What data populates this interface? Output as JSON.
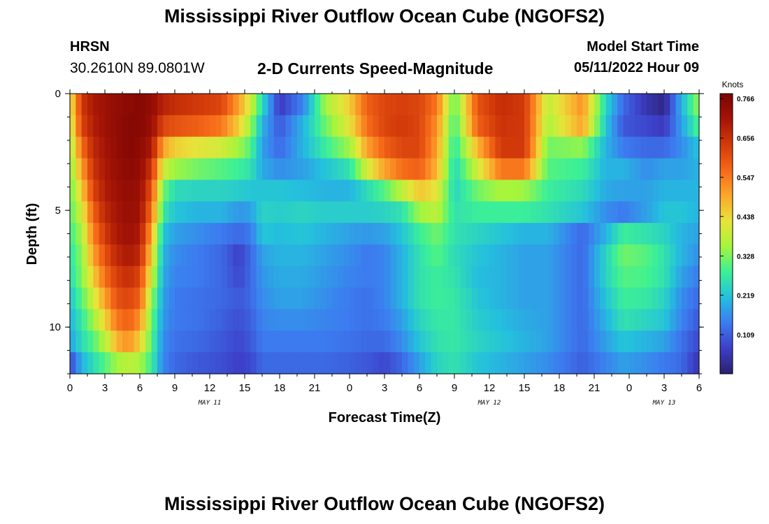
{
  "page": {
    "title": "Mississippi River Outflow Ocean Cube (NGOFS2)",
    "title_repeat": "Mississippi River Outflow Ocean Cube (NGOFS2)"
  },
  "header": {
    "station": "HRSN",
    "coords": "30.2610N  89.0801W",
    "subtitle": "2-D Currents Speed-Magnitude",
    "model_label": "Model Start Time",
    "model_time": "05/11/2022 Hour 09"
  },
  "chart_data": {
    "type": "heatmap",
    "xlabel": "Forecast Time(Z)",
    "ylabel": "Depth (ft)",
    "x_ticks": [
      "0",
      "3",
      "6",
      "9",
      "12",
      "15",
      "18",
      "21",
      "0",
      "3",
      "6",
      "9",
      "12",
      "15",
      "18",
      "21",
      "0",
      "3",
      "6"
    ],
    "x_range_hours": [
      0,
      54
    ],
    "y_ticks": [
      "0",
      "5",
      "10"
    ],
    "y_range": [
      0,
      12
    ],
    "date_labels": [
      {
        "text": "MAY 11",
        "hour": 12
      },
      {
        "text": "MAY 12",
        "hour": 36
      },
      {
        "text": "MAY 13",
        "hour": 51
      }
    ],
    "colorbar": {
      "unit": "Knots",
      "ticks": [
        "0.766",
        "0.656",
        "0.547",
        "0.438",
        "0.328",
        "0.219",
        "0.109"
      ],
      "tick_values": [
        0.766,
        0.656,
        0.547,
        0.438,
        0.328,
        0.219,
        0.109
      ],
      "min": 0.0,
      "max": 0.78,
      "colors": [
        "#2b1f6b",
        "#3d3fc9",
        "#3c7cf0",
        "#24c0dd",
        "#3cf096",
        "#a6f53c",
        "#e8e33a",
        "#fca62c",
        "#f56818",
        "#d23a0a",
        "#a51406",
        "#7a0403"
      ]
    },
    "depth_levels": [
      0,
      1,
      2,
      3,
      4,
      5,
      6,
      7,
      8,
      9,
      10,
      11,
      12
    ],
    "speed_profiles": [
      {
        "hour": 0,
        "values": [
          0.4,
          0.38,
          0.35,
          0.33,
          0.31,
          0.3,
          0.28,
          0.26,
          0.25,
          0.22,
          0.2,
          0.18,
          0.08
        ]
      },
      {
        "hour": 1,
        "values": [
          0.64,
          0.62,
          0.56,
          0.5,
          0.45,
          0.4,
          0.36,
          0.34,
          0.33,
          0.3,
          0.27,
          0.25,
          0.2
        ]
      },
      {
        "hour": 2,
        "values": [
          0.7,
          0.69,
          0.67,
          0.65,
          0.62,
          0.58,
          0.54,
          0.5,
          0.45,
          0.4,
          0.35,
          0.3,
          0.25
        ]
      },
      {
        "hour": 3,
        "values": [
          0.72,
          0.72,
          0.71,
          0.7,
          0.69,
          0.67,
          0.64,
          0.6,
          0.56,
          0.5,
          0.44,
          0.37,
          0.3
        ]
      },
      {
        "hour": 4,
        "values": [
          0.74,
          0.74,
          0.74,
          0.73,
          0.72,
          0.71,
          0.7,
          0.67,
          0.63,
          0.6,
          0.55,
          0.48,
          0.35
        ]
      },
      {
        "hour": 5,
        "values": [
          0.75,
          0.76,
          0.76,
          0.75,
          0.74,
          0.73,
          0.72,
          0.7,
          0.66,
          0.62,
          0.58,
          0.52,
          0.38
        ]
      },
      {
        "hour": 6,
        "values": [
          0.76,
          0.76,
          0.75,
          0.74,
          0.73,
          0.72,
          0.7,
          0.67,
          0.62,
          0.58,
          0.52,
          0.45,
          0.36
        ]
      },
      {
        "hour": 7,
        "values": [
          0.74,
          0.73,
          0.7,
          0.65,
          0.6,
          0.56,
          0.5,
          0.45,
          0.4,
          0.35,
          0.32,
          0.3,
          0.28
        ]
      },
      {
        "hour": 8,
        "values": [
          0.68,
          0.62,
          0.5,
          0.4,
          0.32,
          0.27,
          0.22,
          0.2,
          0.19,
          0.18,
          0.17,
          0.16,
          0.15
        ]
      },
      {
        "hour": 9,
        "values": [
          0.66,
          0.6,
          0.45,
          0.35,
          0.25,
          0.22,
          0.18,
          0.16,
          0.15,
          0.14,
          0.14,
          0.13,
          0.12
        ]
      },
      {
        "hour": 11,
        "values": [
          0.64,
          0.58,
          0.42,
          0.32,
          0.24,
          0.2,
          0.16,
          0.14,
          0.14,
          0.13,
          0.13,
          0.12,
          0.1
        ]
      },
      {
        "hour": 13,
        "values": [
          0.62,
          0.55,
          0.4,
          0.3,
          0.24,
          0.2,
          0.14,
          0.12,
          0.12,
          0.12,
          0.11,
          0.1,
          0.09
        ]
      },
      {
        "hour": 14.5,
        "values": [
          0.5,
          0.45,
          0.35,
          0.28,
          0.23,
          0.17,
          0.12,
          0.07,
          0.08,
          0.1,
          0.09,
          0.08,
          0.07
        ]
      },
      {
        "hour": 15.5,
        "values": [
          0.4,
          0.35,
          0.3,
          0.26,
          0.22,
          0.18,
          0.14,
          0.12,
          0.12,
          0.12,
          0.11,
          0.1,
          0.08
        ]
      },
      {
        "hour": 16.5,
        "values": [
          0.25,
          0.2,
          0.18,
          0.19,
          0.22,
          0.24,
          0.22,
          0.18,
          0.17,
          0.16,
          0.15,
          0.14,
          0.12
        ]
      },
      {
        "hour": 18,
        "values": [
          0.06,
          0.1,
          0.12,
          0.16,
          0.22,
          0.23,
          0.21,
          0.2,
          0.19,
          0.18,
          0.16,
          0.14,
          0.12
        ]
      },
      {
        "hour": 20,
        "values": [
          0.15,
          0.2,
          0.2,
          0.18,
          0.21,
          0.24,
          0.22,
          0.2,
          0.19,
          0.18,
          0.16,
          0.14,
          0.12
        ]
      },
      {
        "hour": 22,
        "values": [
          0.36,
          0.32,
          0.28,
          0.22,
          0.2,
          0.23,
          0.2,
          0.18,
          0.17,
          0.16,
          0.15,
          0.14,
          0.12
        ]
      },
      {
        "hour": 24,
        "values": [
          0.45,
          0.42,
          0.35,
          0.26,
          0.2,
          0.23,
          0.18,
          0.16,
          0.15,
          0.14,
          0.14,
          0.13,
          0.11
        ]
      },
      {
        "hour": 25.5,
        "values": [
          0.58,
          0.56,
          0.5,
          0.4,
          0.25,
          0.23,
          0.17,
          0.14,
          0.14,
          0.13,
          0.13,
          0.12,
          0.1
        ]
      },
      {
        "hour": 27,
        "values": [
          0.62,
          0.62,
          0.58,
          0.5,
          0.3,
          0.24,
          0.18,
          0.15,
          0.15,
          0.15,
          0.14,
          0.12,
          0.08
        ]
      },
      {
        "hour": 28.5,
        "values": [
          0.63,
          0.64,
          0.62,
          0.56,
          0.38,
          0.26,
          0.22,
          0.2,
          0.2,
          0.2,
          0.18,
          0.16,
          0.12
        ]
      },
      {
        "hour": 30,
        "values": [
          0.62,
          0.62,
          0.62,
          0.58,
          0.46,
          0.35,
          0.28,
          0.26,
          0.26,
          0.26,
          0.24,
          0.22,
          0.18
        ]
      },
      {
        "hour": 31.5,
        "values": [
          0.55,
          0.52,
          0.5,
          0.48,
          0.42,
          0.38,
          0.32,
          0.3,
          0.28,
          0.28,
          0.27,
          0.26,
          0.24
        ]
      },
      {
        "hour": 33,
        "values": [
          0.3,
          0.28,
          0.26,
          0.24,
          0.24,
          0.26,
          0.26,
          0.25,
          0.26,
          0.27,
          0.27,
          0.27,
          0.26
        ]
      },
      {
        "hour": 35,
        "values": [
          0.6,
          0.58,
          0.48,
          0.4,
          0.32,
          0.28,
          0.24,
          0.22,
          0.21,
          0.22,
          0.23,
          0.24,
          0.22
        ]
      },
      {
        "hour": 37,
        "values": [
          0.66,
          0.65,
          0.64,
          0.55,
          0.36,
          0.28,
          0.22,
          0.2,
          0.2,
          0.2,
          0.21,
          0.22,
          0.2
        ]
      },
      {
        "hour": 39,
        "values": [
          0.64,
          0.64,
          0.64,
          0.55,
          0.35,
          0.28,
          0.2,
          0.18,
          0.18,
          0.18,
          0.19,
          0.2,
          0.18
        ]
      },
      {
        "hour": 41,
        "values": [
          0.38,
          0.36,
          0.32,
          0.3,
          0.28,
          0.26,
          0.2,
          0.18,
          0.18,
          0.18,
          0.18,
          0.18,
          0.16
        ]
      },
      {
        "hour": 44,
        "values": [
          0.52,
          0.5,
          0.34,
          0.28,
          0.25,
          0.22,
          0.12,
          0.12,
          0.12,
          0.12,
          0.12,
          0.12,
          0.11
        ]
      },
      {
        "hour": 46,
        "values": [
          0.24,
          0.22,
          0.2,
          0.2,
          0.19,
          0.16,
          0.2,
          0.24,
          0.24,
          0.22,
          0.2,
          0.18,
          0.15
        ]
      },
      {
        "hour": 47.5,
        "values": [
          0.12,
          0.1,
          0.14,
          0.2,
          0.18,
          0.14,
          0.28,
          0.32,
          0.3,
          0.28,
          0.26,
          0.22,
          0.18
        ]
      },
      {
        "hour": 49.5,
        "values": [
          0.05,
          0.08,
          0.12,
          0.16,
          0.18,
          0.18,
          0.26,
          0.3,
          0.29,
          0.27,
          0.24,
          0.2,
          0.16
        ]
      },
      {
        "hour": 51,
        "values": [
          0.02,
          0.06,
          0.12,
          0.18,
          0.2,
          0.22,
          0.24,
          0.26,
          0.26,
          0.24,
          0.22,
          0.18,
          0.14
        ]
      },
      {
        "hour": 52.5,
        "values": [
          0.2,
          0.18,
          0.16,
          0.18,
          0.2,
          0.22,
          0.2,
          0.2,
          0.18,
          0.16,
          0.15,
          0.13,
          0.12
        ]
      },
      {
        "hour": 54,
        "values": [
          0.35,
          0.3,
          0.22,
          0.2,
          0.2,
          0.2,
          0.18,
          0.16,
          0.14,
          0.12,
          0.1,
          0.08,
          0.05
        ]
      }
    ]
  }
}
